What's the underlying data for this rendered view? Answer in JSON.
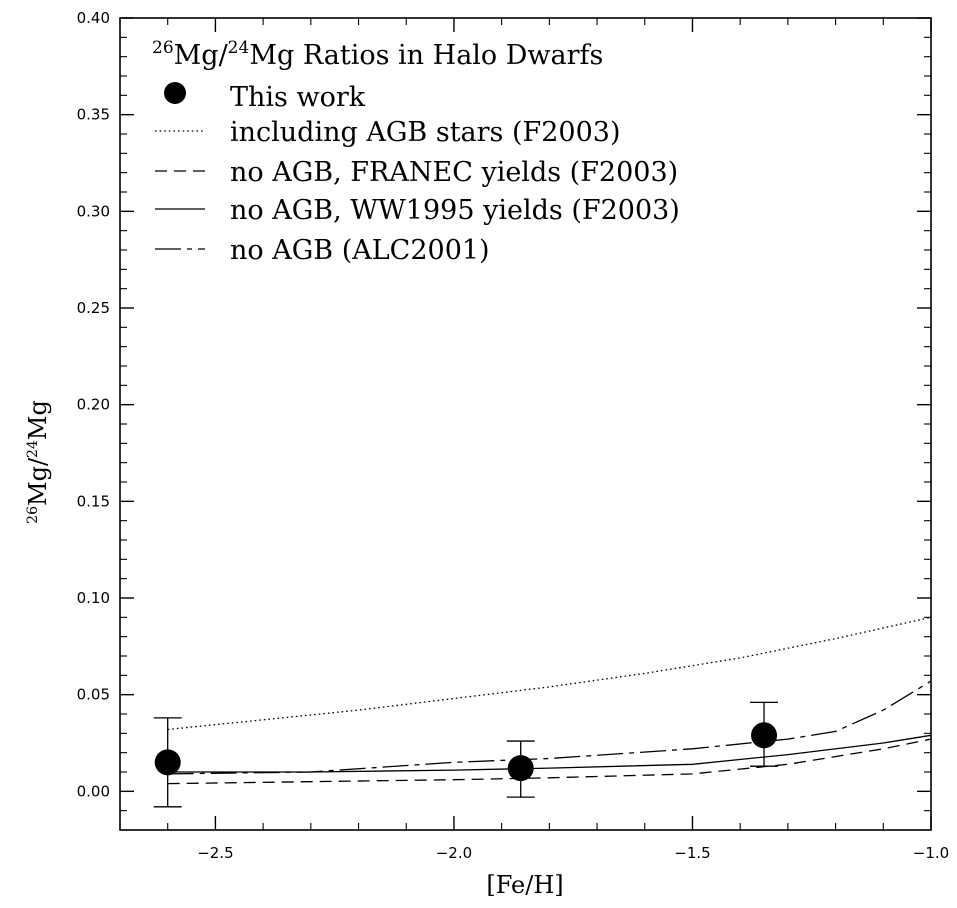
{
  "chart_data": {
    "type": "scatter",
    "title": "²⁶Mg/²⁴Mg Ratios in Halo Dwarfs",
    "title_parts": {
      "sup1": "26",
      "base1": "Mg/",
      "sup2": "24",
      "base2": "Mg Ratios in Halo Dwarfs"
    },
    "xlabel": "[Fe/H]",
    "ylabel": "²⁶Mg/²⁴Mg",
    "ylabel_parts": {
      "sup1": "26",
      "base1": "Mg/",
      "sup2": "24",
      "base2": "Mg"
    },
    "xlim": [
      -2.7,
      -1.0
    ],
    "ylim": [
      -0.02,
      0.4
    ],
    "x_ticks": [
      -2.5,
      -2.0,
      -1.5,
      -1.0
    ],
    "x_tick_labels": [
      "−2.5",
      "−2.0",
      "−1.5",
      "−1.0"
    ],
    "y_ticks": [
      0.0,
      0.05,
      0.1,
      0.15,
      0.2,
      0.25,
      0.3,
      0.35,
      0.4
    ],
    "y_tick_labels": [
      "0.00",
      "0.05",
      "0.10",
      "0.15",
      "0.20",
      "0.25",
      "0.30",
      "0.35",
      "0.40"
    ],
    "grid": false,
    "legend_position": "top-left",
    "points": {
      "name": "This work",
      "x": [
        -2.6,
        -1.86,
        -1.35
      ],
      "y": [
        0.015,
        0.012,
        0.029
      ],
      "y_low": [
        -0.008,
        -0.003,
        0.013
      ],
      "y_high": [
        0.038,
        0.026,
        0.046
      ]
    },
    "series": [
      {
        "name": "including AGB stars (F2003)",
        "style": "dotted",
        "x": [
          -2.6,
          -2.4,
          -2.2,
          -2.0,
          -1.8,
          -1.6,
          -1.4,
          -1.2,
          -1.0
        ],
        "y": [
          0.032,
          0.037,
          0.042,
          0.048,
          0.054,
          0.061,
          0.069,
          0.079,
          0.09
        ]
      },
      {
        "name": "no AGB, FRANEC yields (F2003)",
        "style": "dashed",
        "x": [
          -2.6,
          -2.3,
          -2.0,
          -1.8,
          -1.5,
          -1.3,
          -1.1,
          -1.0
        ],
        "y": [
          0.004,
          0.005,
          0.006,
          0.007,
          0.009,
          0.014,
          0.022,
          0.027
        ]
      },
      {
        "name": "no AGB, WW1995 yields (F2003)",
        "style": "solid",
        "x": [
          -2.6,
          -2.3,
          -2.0,
          -1.8,
          -1.5,
          -1.3,
          -1.1,
          -1.0
        ],
        "y": [
          0.01,
          0.01,
          0.011,
          0.012,
          0.014,
          0.019,
          0.025,
          0.029
        ]
      },
      {
        "name": "no AGB (ALC2001)",
        "style": "long-dash",
        "x": [
          -2.6,
          -2.3,
          -2.0,
          -1.8,
          -1.5,
          -1.3,
          -1.2,
          -1.1,
          -1.0
        ],
        "y": [
          0.009,
          0.01,
          0.015,
          0.017,
          0.022,
          0.027,
          0.031,
          0.042,
          0.057
        ]
      }
    ]
  }
}
